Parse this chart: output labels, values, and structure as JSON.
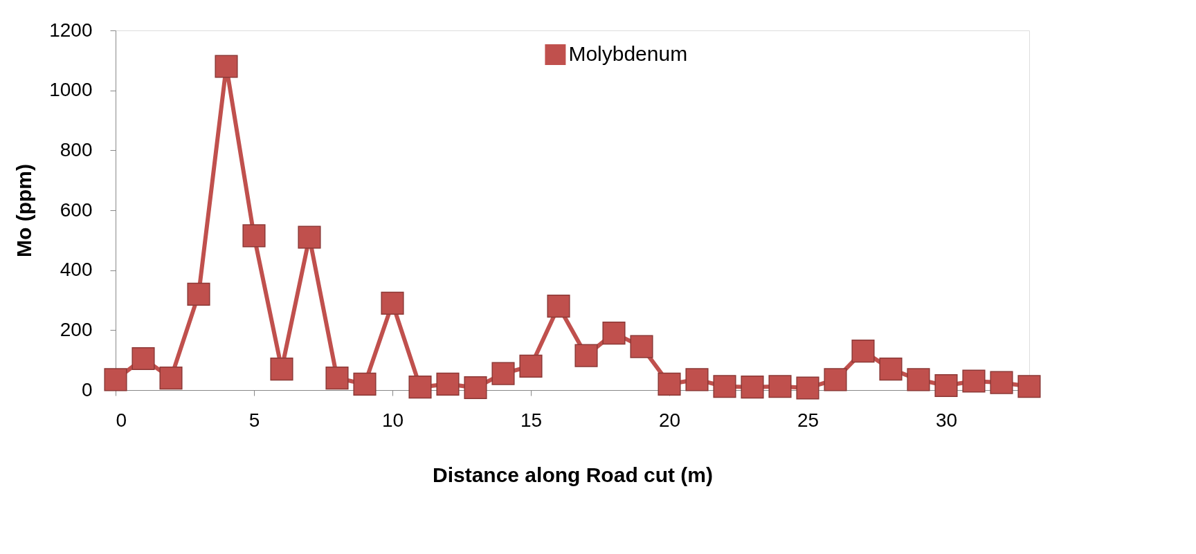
{
  "chart_data": {
    "type": "line",
    "xlabel": "Distance along Road cut (m)",
    "ylabel": "Mo (ppm)",
    "x": [
      0,
      1,
      2,
      3,
      4,
      5,
      6,
      7,
      8,
      9,
      10,
      11,
      12,
      13,
      14,
      15,
      16,
      17,
      18,
      19,
      20,
      21,
      22,
      23,
      24,
      25,
      26,
      27,
      28,
      29,
      30,
      31,
      32,
      33
    ],
    "series": [
      {
        "name": "Molybdenum",
        "color": "#c0504d",
        "values": [
          35,
          105,
          40,
          320,
          1080,
          515,
          70,
          510,
          40,
          20,
          290,
          10,
          20,
          8,
          55,
          80,
          280,
          115,
          190,
          145,
          20,
          35,
          12,
          10,
          12,
          7,
          35,
          130,
          70,
          35,
          15,
          30,
          25,
          12
        ]
      }
    ],
    "xlim": [
      0,
      33
    ],
    "xticks": [
      0,
      5,
      10,
      15,
      20,
      25,
      30
    ],
    "ylim": [
      0,
      1200
    ],
    "yticks": [
      0,
      200,
      400,
      600,
      800,
      1000,
      1200
    ],
    "marker": "square",
    "line_style": "solid",
    "grid": false,
    "legend": "top"
  }
}
